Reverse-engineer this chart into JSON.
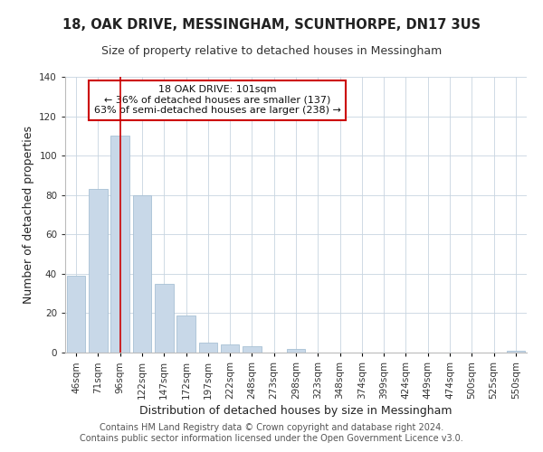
{
  "title": "18, OAK DRIVE, MESSINGHAM, SCUNTHORPE, DN17 3US",
  "subtitle": "Size of property relative to detached houses in Messingham",
  "xlabel": "Distribution of detached houses by size in Messingham",
  "ylabel": "Number of detached properties",
  "bar_labels": [
    "46sqm",
    "71sqm",
    "96sqm",
    "122sqm",
    "147sqm",
    "172sqm",
    "197sqm",
    "222sqm",
    "248sqm",
    "273sqm",
    "298sqm",
    "323sqm",
    "348sqm",
    "374sqm",
    "399sqm",
    "424sqm",
    "449sqm",
    "474sqm",
    "500sqm",
    "525sqm",
    "550sqm"
  ],
  "bar_values": [
    39,
    83,
    110,
    80,
    35,
    19,
    5,
    4,
    3,
    0,
    2,
    0,
    0,
    0,
    0,
    0,
    0,
    0,
    0,
    0,
    1
  ],
  "bar_color": "#c8d8e8",
  "bar_edge_color": "#a8c0d4",
  "ylim": [
    0,
    140
  ],
  "yticks": [
    0,
    20,
    40,
    60,
    80,
    100,
    120,
    140
  ],
  "vline_x_index": 2,
  "vline_color": "#cc0000",
  "property_label": "18 OAK DRIVE: 101sqm",
  "annotation_line1": "← 36% of detached houses are smaller (137)",
  "annotation_line2": "63% of semi-detached houses are larger (238) →",
  "annotation_box_color": "#ffffff",
  "annotation_box_edge": "#cc0000",
  "footer1": "Contains HM Land Registry data © Crown copyright and database right 2024.",
  "footer2": "Contains public sector information licensed under the Open Government Licence v3.0.",
  "title_fontsize": 10.5,
  "subtitle_fontsize": 9,
  "axis_label_fontsize": 9,
  "tick_fontsize": 7.5,
  "annotation_fontsize": 8,
  "footer_fontsize": 7
}
